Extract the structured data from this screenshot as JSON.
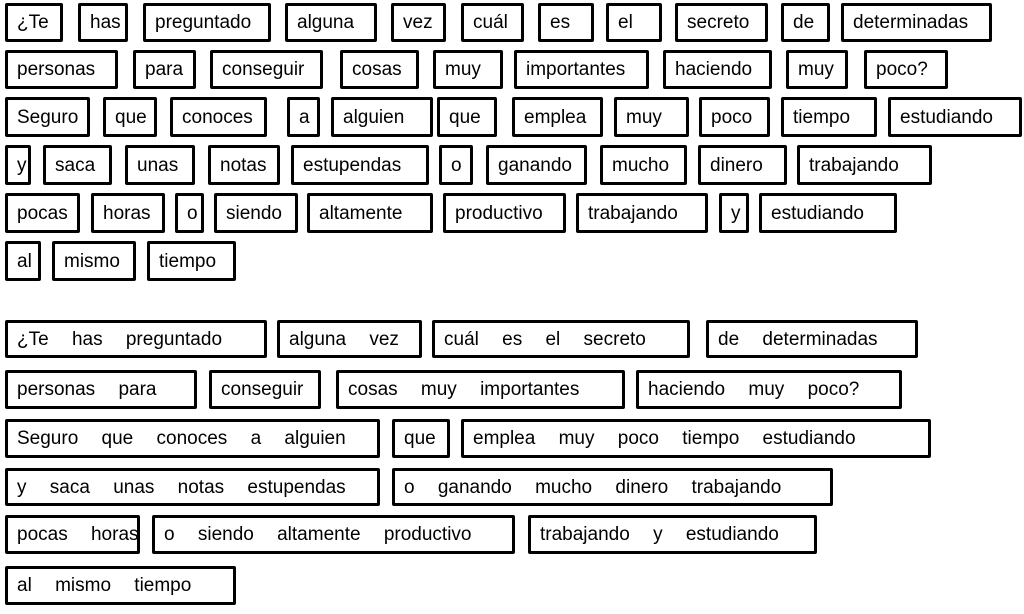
{
  "word_by_word": {
    "rows": [
      [
        "¿Te",
        "has",
        "preguntado",
        "alguna",
        "vez",
        "cuál",
        "es",
        "el",
        "secreto",
        "de",
        "determinadas"
      ],
      [
        "personas",
        "para",
        "conseguir",
        "cosas",
        "muy",
        "importantes",
        "haciendo",
        "muy",
        "poco?"
      ],
      [
        "Seguro",
        "que",
        "conoces",
        "a",
        "alguien",
        "que",
        "emplea",
        "muy",
        "poco",
        "tiempo",
        "estudiando"
      ],
      [
        "y",
        "saca",
        "unas",
        "notas",
        "estupendas",
        "o",
        "ganando",
        "mucho",
        "dinero",
        "trabajando"
      ],
      [
        "pocas",
        "horas",
        "o",
        "siendo",
        "altamente",
        "productivo",
        "trabajando",
        "y",
        "estudiando"
      ],
      [
        "al",
        "mismo",
        "tiempo"
      ]
    ]
  },
  "chunked": {
    "rows": [
      [
        "¿Te has preguntado",
        "alguna vez",
        "cuál es el secreto",
        "de determinadas"
      ],
      [
        "personas para",
        "conseguir",
        "cosas muy importantes",
        "haciendo muy poco?"
      ],
      [
        "Seguro que conoces a alguien",
        "que",
        "emplea muy poco tiempo estudiando"
      ],
      [
        "y saca unas notas estupendas",
        "o ganando mucho dinero trabajando"
      ],
      [
        "pocas horas",
        "o siendo altamente productivo",
        "trabajando y estudiando"
      ],
      [
        "al mismo tiempo"
      ]
    ]
  }
}
